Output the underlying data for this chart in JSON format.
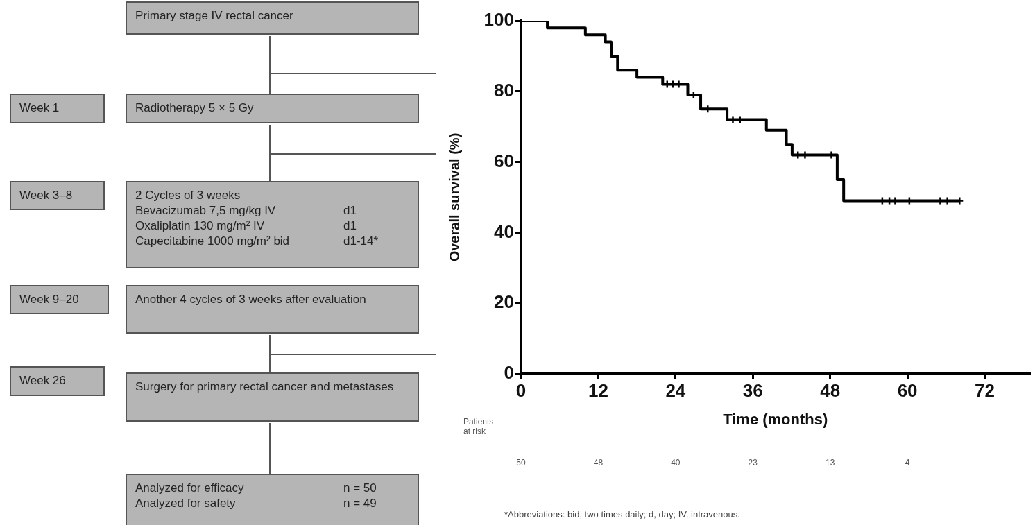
{
  "chart_data": [
    {
      "type": "other",
      "annotations": [
        "Primary stage IV rectal cancer",
        "Week 1",
        "Radiotherapy 5 × 5 Gy",
        "Week 3–8",
        "2 Cycles of 3 weeks\nBevacizumab 7,5 mg/kg IV\td1\nOxaliplatin 130 mg/m² IV\td1\nCapecitabine 1000 mg/m² bid\td1-14*",
        "Week 9–20",
        "Another 4 cycles of 3 weeks after evaluation",
        "Week 26",
        "Surgery for primary rectal cancer and metastases",
        "Analyzed for efficacy\tn = 50\nAnalyzed for safety\tn = 49"
      ]
    },
    {
      "type": "step",
      "xlabel": "Time (months)",
      "ylabel": "Overall survival (%)",
      "xlim": [
        0,
        79
      ],
      "xticks": [
        0,
        12,
        24,
        36,
        48,
        60,
        72
      ],
      "ylim": [
        0,
        100
      ],
      "yticks": [
        0,
        20,
        40,
        60,
        80,
        100
      ],
      "grid": false,
      "legend": false,
      "series": [
        {
          "type": "step",
          "color": "#000000",
          "x": [
            0,
            4.1,
            10.0,
            13.1,
            14.0,
            15.0,
            18.0,
            22.0,
            25.9,
            27.9,
            32.0,
            38.1,
            41.2,
            42.1,
            49.1,
            50.1,
            68.1
          ],
          "values": [
            100,
            98,
            96,
            94,
            90,
            86,
            84,
            82,
            79,
            75,
            72,
            69,
            65,
            62,
            55,
            49,
            49
          ]
        },
        {
          "type": "scatter",
          "marker": "cross",
          "color": "#000000",
          "x": [
            22.7,
            23.6,
            24.5,
            26.8,
            29.0,
            32.9,
            34.0,
            43.0,
            44.1,
            48.2,
            56.1,
            57.2,
            58.1,
            60.3,
            65.1,
            66.2,
            68.1
          ],
          "values": [
            82,
            82,
            82,
            79,
            75,
            72,
            72,
            62,
            62,
            62,
            49,
            49,
            49,
            49,
            49,
            49,
            49
          ]
        }
      ],
      "annotations": [
        "Patients\nat risk",
        "50",
        "48",
        "40",
        "23",
        "13",
        "4",
        "*Abbreviations: bid, two times daily; d, day; IV, intravenous."
      ]
    }
  ]
}
